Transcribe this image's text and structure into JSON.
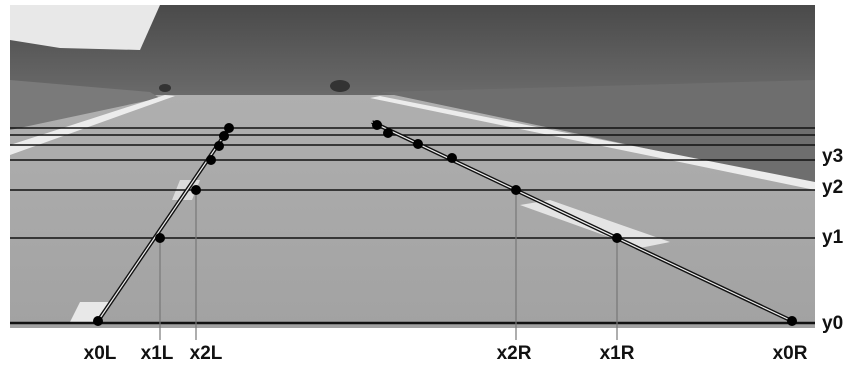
{
  "y_labels": [
    "y3",
    "y2",
    "y1",
    "y0"
  ],
  "x_labels": [
    "x0L",
    "x1L",
    "x2L",
    "x2R",
    "x1R",
    "x0R"
  ]
}
